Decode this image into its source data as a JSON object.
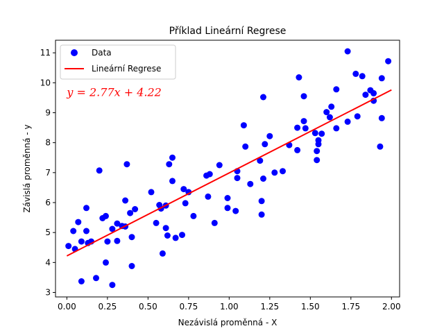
{
  "chart_data": {
    "type": "scatter",
    "title": "Příklad Lineární Regrese",
    "xlabel": "Nezávislá proměnná - X",
    "ylabel": "Závislá proměnná - y",
    "xlim": [
      -0.07,
      2.05
    ],
    "ylim": [
      2.85,
      11.42
    ],
    "xticks": [
      0.0,
      0.25,
      0.5,
      0.75,
      1.0,
      1.25,
      1.5,
      1.75,
      2.0
    ],
    "xtick_labels": [
      "0.00",
      "0.25",
      "0.50",
      "0.75",
      "1.00",
      "1.25",
      "1.50",
      "1.75",
      "2.00"
    ],
    "yticks": [
      3,
      4,
      5,
      6,
      7,
      8,
      9,
      10,
      11
    ],
    "ytick_labels": [
      "3",
      "4",
      "5",
      "6",
      "7",
      "8",
      "9",
      "10",
      "11"
    ],
    "grid": false,
    "legend": {
      "position": "top-left",
      "entries": [
        "Data",
        "Lineární Regrese"
      ]
    },
    "annotation": {
      "text": "y = 2.77x + 4.22",
      "x": 0.0,
      "y": 9.55,
      "color": "#ff0000"
    },
    "series": [
      {
        "name": "Data",
        "kind": "scatter",
        "color": "#0000ff",
        "points": [
          [
            0.01,
            4.55
          ],
          [
            0.05,
            4.45
          ],
          [
            0.04,
            5.05
          ],
          [
            0.07,
            5.35
          ],
          [
            0.09,
            4.7
          ],
          [
            0.09,
            3.37
          ],
          [
            0.12,
            5.82
          ],
          [
            0.12,
            5.05
          ],
          [
            0.13,
            4.65
          ],
          [
            0.15,
            4.7
          ],
          [
            0.18,
            3.48
          ],
          [
            0.2,
            7.07
          ],
          [
            0.22,
            5.48
          ],
          [
            0.24,
            5.55
          ],
          [
            0.24,
            4.0
          ],
          [
            0.25,
            4.7
          ],
          [
            0.28,
            5.12
          ],
          [
            0.28,
            3.25
          ],
          [
            0.31,
            5.3
          ],
          [
            0.31,
            4.72
          ],
          [
            0.34,
            5.22
          ],
          [
            0.36,
            5.2
          ],
          [
            0.36,
            6.07
          ],
          [
            0.37,
            7.28
          ],
          [
            0.39,
            5.65
          ],
          [
            0.4,
            4.85
          ],
          [
            0.4,
            3.88
          ],
          [
            0.42,
            5.78
          ],
          [
            0.52,
            6.35
          ],
          [
            0.55,
            5.32
          ],
          [
            0.57,
            5.92
          ],
          [
            0.58,
            5.8
          ],
          [
            0.59,
            4.3
          ],
          [
            0.61,
            5.9
          ],
          [
            0.61,
            5.15
          ],
          [
            0.62,
            4.9
          ],
          [
            0.63,
            7.28
          ],
          [
            0.65,
            7.5
          ],
          [
            0.65,
            6.72
          ],
          [
            0.67,
            4.82
          ],
          [
            0.71,
            4.92
          ],
          [
            0.72,
            6.45
          ],
          [
            0.73,
            5.98
          ],
          [
            0.75,
            6.35
          ],
          [
            0.78,
            5.55
          ],
          [
            0.86,
            6.9
          ],
          [
            0.87,
            6.2
          ],
          [
            0.88,
            6.95
          ],
          [
            0.91,
            5.32
          ],
          [
            0.94,
            7.25
          ],
          [
            0.99,
            6.15
          ],
          [
            0.99,
            5.82
          ],
          [
            1.04,
            5.72
          ],
          [
            1.05,
            7.05
          ],
          [
            1.05,
            6.82
          ],
          [
            1.09,
            8.58
          ],
          [
            1.1,
            7.87
          ],
          [
            1.13,
            6.62
          ],
          [
            1.19,
            7.4
          ],
          [
            1.2,
            6.05
          ],
          [
            1.2,
            5.6
          ],
          [
            1.21,
            6.8
          ],
          [
            1.21,
            9.52
          ],
          [
            1.22,
            7.95
          ],
          [
            1.25,
            8.22
          ],
          [
            1.28,
            7.0
          ],
          [
            1.33,
            7.05
          ],
          [
            1.37,
            7.92
          ],
          [
            1.42,
            8.5
          ],
          [
            1.42,
            7.75
          ],
          [
            1.43,
            10.18
          ],
          [
            1.46,
            9.55
          ],
          [
            1.46,
            8.72
          ],
          [
            1.47,
            8.48
          ],
          [
            1.53,
            8.32
          ],
          [
            1.54,
            7.72
          ],
          [
            1.54,
            7.42
          ],
          [
            1.55,
            7.95
          ],
          [
            1.55,
            8.08
          ],
          [
            1.57,
            8.3
          ],
          [
            1.6,
            9.02
          ],
          [
            1.62,
            8.85
          ],
          [
            1.63,
            9.2
          ],
          [
            1.66,
            9.78
          ],
          [
            1.66,
            8.48
          ],
          [
            1.73,
            11.05
          ],
          [
            1.73,
            8.7
          ],
          [
            1.78,
            10.3
          ],
          [
            1.79,
            8.88
          ],
          [
            1.82,
            10.22
          ],
          [
            1.84,
            9.6
          ],
          [
            1.87,
            9.75
          ],
          [
            1.89,
            9.65
          ],
          [
            1.89,
            9.4
          ],
          [
            1.93,
            7.87
          ],
          [
            1.94,
            10.15
          ],
          [
            1.94,
            8.82
          ],
          [
            1.98,
            10.72
          ]
        ]
      },
      {
        "name": "Lineární Regrese",
        "kind": "line",
        "color": "#ff0000",
        "x": [
          0.0,
          2.0
        ],
        "y": [
          4.22,
          9.76
        ]
      }
    ]
  }
}
